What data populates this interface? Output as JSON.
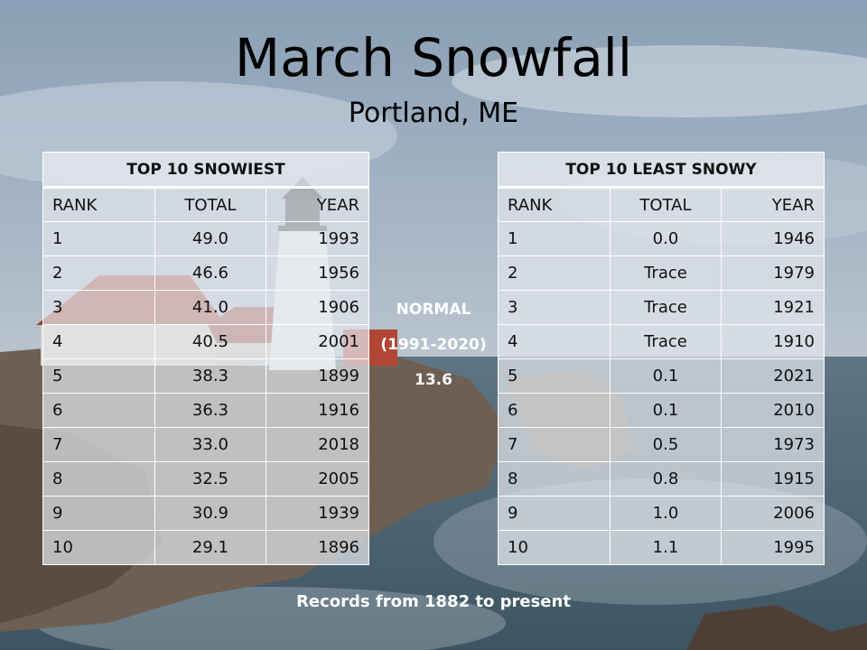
{
  "title": "March Snowfall",
  "subtitle": "Portland, ME",
  "snowiest": {
    "heading": "TOP 10 SNOWIEST",
    "columns": [
      "RANK",
      "TOTAL",
      "YEAR"
    ],
    "rows": [
      [
        "1",
        "49.0",
        "1993"
      ],
      [
        "2",
        "46.6",
        "1956"
      ],
      [
        "3",
        "41.0",
        "1906"
      ],
      [
        "4",
        "40.5",
        "2001"
      ],
      [
        "5",
        "38.3",
        "1899"
      ],
      [
        "6",
        "36.3",
        "1916"
      ],
      [
        "7",
        "33.0",
        "2018"
      ],
      [
        "8",
        "32.5",
        "2005"
      ],
      [
        "9",
        "30.9",
        "1939"
      ],
      [
        "10",
        "29.1",
        "1896"
      ]
    ]
  },
  "least_snowy": {
    "heading": "TOP 10 LEAST SNOWY",
    "columns": [
      "RANK",
      "TOTAL",
      "YEAR"
    ],
    "rows": [
      [
        "1",
        "0.0",
        "1946"
      ],
      [
        "2",
        "Trace",
        "1979"
      ],
      [
        "3",
        "Trace",
        "1921"
      ],
      [
        "4",
        "Trace",
        "1910"
      ],
      [
        "5",
        "0.1",
        "2021"
      ],
      [
        "6",
        "0.1",
        "2010"
      ],
      [
        "7",
        "0.5",
        "1973"
      ],
      [
        "8",
        "0.8",
        "1915"
      ],
      [
        "9",
        "1.0",
        "2006"
      ],
      [
        "10",
        "1.1",
        "1995"
      ]
    ]
  },
  "normal": {
    "label": "NORMAL",
    "period": "(1991-2020)",
    "value": "13.6"
  },
  "footer": "Records from 1882 to present"
}
